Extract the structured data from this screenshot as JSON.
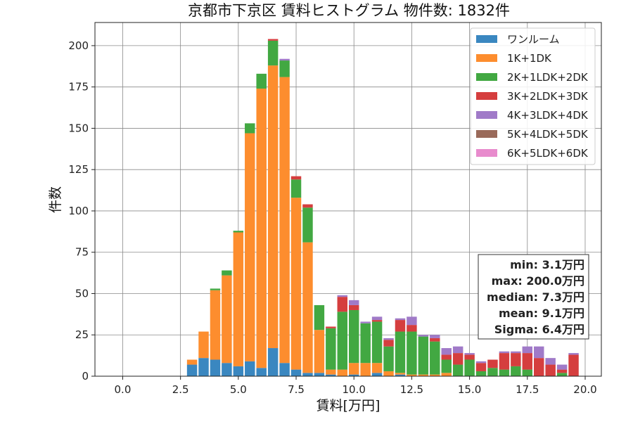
{
  "chart_data": {
    "type": "bar",
    "stacked": true,
    "title": "京都市下京区 賃料ヒストグラム  物件数: 1832件",
    "xlabel": "賃料[万円]",
    "ylabel": "件数",
    "xlim": [
      -1.2,
      20.7
    ],
    "ylim": [
      0,
      214
    ],
    "xticks": [
      0,
      2.5,
      5,
      7.5,
      10,
      12.5,
      15,
      17.5,
      20
    ],
    "xtick_labels": [
      "0.0",
      "2.5",
      "5.0",
      "7.5",
      "10.0",
      "12.5",
      "15.0",
      "17.5",
      "20.0"
    ],
    "yticks": [
      0,
      25,
      50,
      75,
      100,
      125,
      150,
      175,
      200
    ],
    "ytick_labels": [
      "0",
      "25",
      "50",
      "75",
      "100",
      "125",
      "150",
      "175",
      "200"
    ],
    "grid": true,
    "legend_position": "top-right",
    "bin_width": 0.5,
    "x": [
      3.0,
      3.5,
      4.0,
      4.5,
      5.0,
      5.5,
      6.0,
      6.5,
      7.0,
      7.5,
      8.0,
      8.5,
      9.0,
      9.5,
      10.0,
      10.5,
      11.0,
      11.5,
      12.0,
      12.5,
      13.0,
      13.5,
      14.0,
      14.5,
      15.0,
      15.5,
      16.0,
      16.5,
      17.0,
      17.5,
      18.0,
      18.5,
      19.0,
      19.5
    ],
    "series": [
      {
        "name": "ワンルーム",
        "color": "#3a87c0",
        "values": [
          7,
          11,
          10,
          8,
          6,
          9,
          5,
          17,
          8,
          4,
          2,
          2,
          1,
          0,
          1,
          0,
          2,
          0,
          1,
          0,
          0,
          0,
          0,
          0,
          0,
          0,
          0,
          0,
          0,
          0,
          0,
          0,
          0,
          0
        ]
      },
      {
        "name": "1K+1DK",
        "color": "#fd8d2e",
        "values": [
          3,
          16,
          42,
          53,
          81,
          138,
          169,
          171,
          173,
          104,
          79,
          26,
          3,
          4,
          7,
          8,
          6,
          3,
          1,
          1,
          1,
          1,
          2,
          0,
          0,
          0,
          0,
          0,
          0,
          0,
          0,
          0,
          0,
          0
        ]
      },
      {
        "name": "2K+1LDK+2DK",
        "color": "#42a842",
        "values": [
          0,
          0,
          1,
          3,
          1,
          6,
          9,
          15,
          10,
          11,
          21,
          15,
          25,
          35,
          32,
          24,
          25,
          15,
          25,
          26,
          23,
          20,
          8,
          7,
          10,
          3,
          5,
          4,
          6,
          4,
          0,
          0,
          2,
          0
        ]
      },
      {
        "name": "3K+2LDK+3DK",
        "color": "#d53e3e",
        "values": [
          0,
          0,
          0,
          0,
          0,
          0,
          0,
          1,
          0,
          2,
          2,
          0,
          1,
          9,
          3,
          0,
          1,
          4,
          7,
          4,
          0,
          2,
          3,
          7,
          3,
          5,
          5,
          10,
          8,
          10,
          11,
          7,
          2,
          13
        ]
      },
      {
        "name": "4K+3LDK+4DK",
        "color": "#a07ac8",
        "values": [
          0,
          0,
          0,
          0,
          0,
          0,
          0,
          0,
          1,
          0,
          0,
          0,
          0,
          1,
          3,
          1,
          2,
          1,
          1,
          5,
          1,
          2,
          4,
          4,
          1,
          1,
          0,
          1,
          1,
          4,
          7,
          4,
          3,
          1
        ]
      },
      {
        "name": "5K+4LDK+5DK",
        "color": "#9a6a5a",
        "values": [
          0,
          0,
          0,
          0,
          0,
          0,
          0,
          0,
          0,
          0,
          0,
          0,
          0,
          0,
          0,
          0,
          0,
          0,
          0,
          0,
          0,
          0,
          0,
          0,
          0,
          0,
          0,
          0,
          0,
          0,
          0,
          0,
          0,
          0
        ]
      },
      {
        "name": "6K+5LDK+6DK",
        "color": "#e88bcd",
        "values": [
          0,
          0,
          0,
          0,
          0,
          0,
          0,
          0,
          0,
          0,
          0,
          0,
          0,
          0,
          0,
          0,
          0,
          0,
          0,
          0,
          0,
          0,
          0,
          0,
          0,
          0,
          0,
          0,
          0,
          0,
          0,
          0,
          0,
          0
        ]
      }
    ],
    "stats": [
      "min: 3.1万円",
      "max: 200.0万円",
      "median: 7.3万円",
      "mean: 9.1万円",
      "Sigma: 6.4万円"
    ],
    "stats_position": "lower-right"
  }
}
